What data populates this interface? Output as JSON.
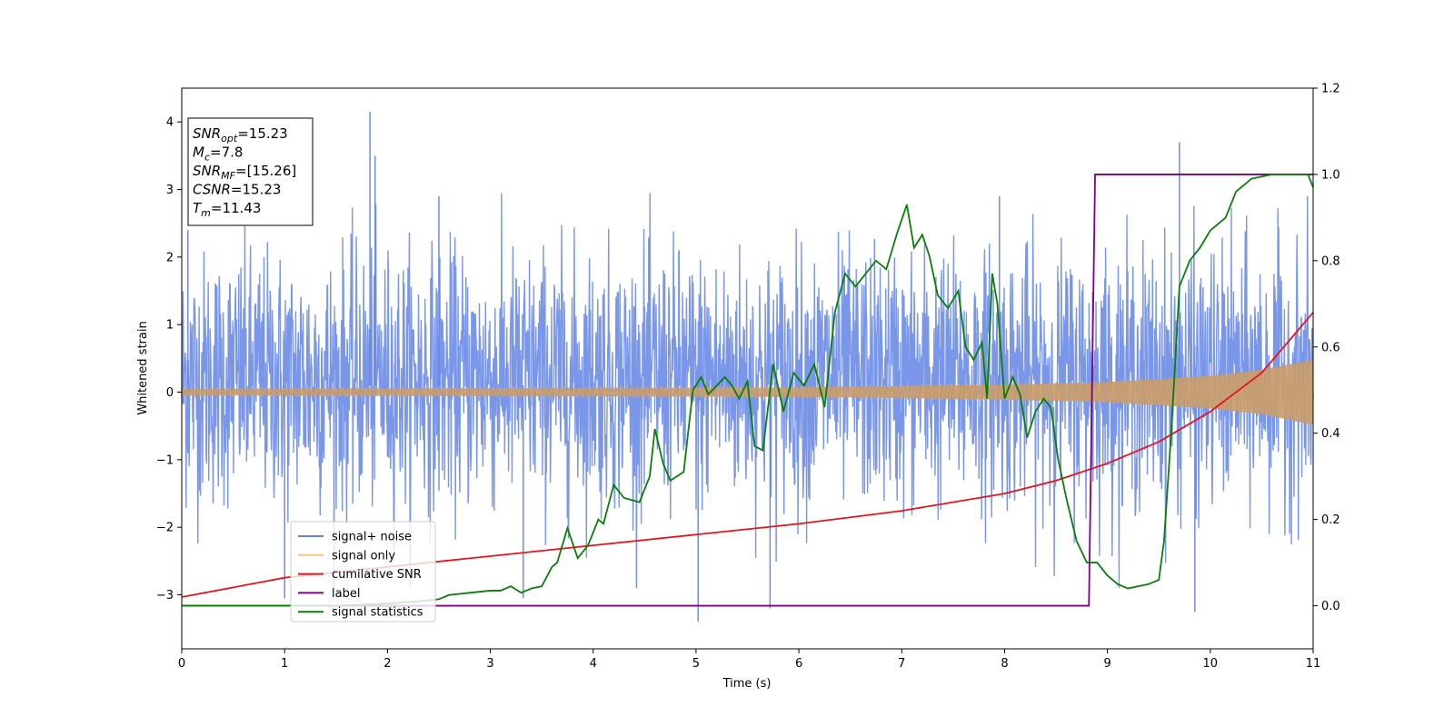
{
  "chart_data": {
    "type": "line",
    "xlabel": "Time (s)",
    "ylabel": "Whitened strain",
    "xlim": [
      0,
      11
    ],
    "ylim": [
      -3.8,
      4.5
    ],
    "y2lim": [
      -0.1,
      1.2
    ],
    "x_ticks": [
      "0",
      "1",
      "2",
      "3",
      "4",
      "5",
      "6",
      "7",
      "8",
      "9",
      "10",
      "11"
    ],
    "y_ticks": [
      "−3",
      "−2",
      "−1",
      "0",
      "1",
      "2",
      "3",
      "4"
    ],
    "y2_ticks": [
      "0.0",
      "0.2",
      "0.4",
      "0.6",
      "0.8",
      "1.0",
      "1.2"
    ],
    "grid": false,
    "legend_position": "lower-left",
    "annotation": [
      {
        "main": "SNR",
        "sub": "opt",
        "rest": "=15.23"
      },
      {
        "main": "M",
        "sub": "c",
        "rest": "=7.8"
      },
      {
        "main": "SNR",
        "sub": "MF",
        "rest": "=[15.26]"
      },
      {
        "main": "CSNR",
        "sub": "",
        "rest": "=15.23"
      },
      {
        "main": "T",
        "sub": "m",
        "rest": "=11.43"
      }
    ],
    "series": [
      {
        "name": "signal+ noise",
        "axis": "left",
        "color": "#6384e4",
        "typical_range": [
          -1.6,
          2.3
        ],
        "peaks": [
          [
            1.83,
            4.15
          ],
          [
            1.88,
            3.5
          ],
          [
            9.7,
            3.7
          ],
          [
            7.95,
            2.9
          ],
          [
            0.06,
            2.4
          ],
          [
            2.5,
            2.9
          ],
          [
            5.02,
            -3.4
          ],
          [
            5.72,
            -3.2
          ],
          [
            9.85,
            -3.25
          ],
          [
            1.0,
            -3.05
          ],
          [
            3.32,
            -3.05
          ]
        ]
      },
      {
        "name": "signal only",
        "axis": "left",
        "color": "#f5c57a",
        "envelope": {
          "t": [
            0,
            6,
            8,
            9,
            10,
            10.5,
            11
          ],
          "amplitude": [
            0.05,
            0.07,
            0.11,
            0.15,
            0.24,
            0.33,
            0.48
          ]
        }
      },
      {
        "name": "cumilative SNR",
        "axis": "right",
        "color": "#e8141b",
        "x": [
          0,
          1,
          2,
          3,
          4,
          5,
          6,
          7,
          8,
          8.5,
          9,
          9.5,
          10,
          10.5,
          11
        ],
        "y": [
          0.02,
          0.065,
          0.09,
          0.115,
          0.14,
          0.165,
          0.19,
          0.22,
          0.26,
          0.29,
          0.33,
          0.38,
          0.45,
          0.54,
          0.68
        ]
      },
      {
        "name": "label",
        "axis": "right",
        "color": "#800080",
        "x": [
          0,
          8.82,
          8.88,
          11
        ],
        "y": [
          0,
          0,
          1,
          1
        ]
      },
      {
        "name": "signal statistics",
        "axis": "right",
        "color": "#0a7d0a",
        "x": [
          0,
          0.5,
          1.0,
          1.5,
          2.0,
          2.3,
          2.5,
          2.6,
          2.8,
          3.0,
          3.1,
          3.2,
          3.3,
          3.4,
          3.5,
          3.6,
          3.65,
          3.75,
          3.85,
          3.95,
          4.05,
          4.1,
          4.2,
          4.3,
          4.45,
          4.55,
          4.6,
          4.68,
          4.75,
          4.88,
          4.97,
          5.05,
          5.12,
          5.2,
          5.28,
          5.35,
          5.42,
          5.5,
          5.57,
          5.65,
          5.75,
          5.85,
          5.95,
          6.05,
          6.15,
          6.25,
          6.35,
          6.45,
          6.55,
          6.65,
          6.75,
          6.85,
          6.95,
          7.05,
          7.12,
          7.2,
          7.27,
          7.35,
          7.45,
          7.55,
          7.62,
          7.7,
          7.78,
          7.83,
          7.88,
          7.93,
          8.0,
          8.08,
          8.15,
          8.22,
          8.3,
          8.38,
          8.45,
          8.52,
          8.6,
          8.7,
          8.8,
          8.9,
          9.0,
          9.1,
          9.2,
          9.3,
          9.4,
          9.5,
          9.55,
          9.62,
          9.7,
          9.8,
          9.9,
          10.0,
          10.05,
          10.15,
          10.25,
          10.4,
          10.6,
          10.8,
          10.95,
          11.0
        ],
        "y": [
          0.0,
          0.0,
          0.0,
          0.0,
          0.005,
          0.01,
          0.015,
          0.025,
          0.03,
          0.035,
          0.035,
          0.045,
          0.03,
          0.04,
          0.045,
          0.09,
          0.1,
          0.18,
          0.11,
          0.14,
          0.2,
          0.19,
          0.28,
          0.25,
          0.24,
          0.3,
          0.41,
          0.33,
          0.29,
          0.31,
          0.5,
          0.53,
          0.49,
          0.51,
          0.53,
          0.51,
          0.48,
          0.52,
          0.37,
          0.36,
          0.56,
          0.45,
          0.54,
          0.51,
          0.56,
          0.46,
          0.68,
          0.77,
          0.74,
          0.77,
          0.8,
          0.78,
          0.86,
          0.93,
          0.83,
          0.86,
          0.81,
          0.72,
          0.69,
          0.73,
          0.6,
          0.57,
          0.61,
          0.48,
          0.77,
          0.7,
          0.48,
          0.53,
          0.49,
          0.39,
          0.45,
          0.48,
          0.46,
          0.34,
          0.25,
          0.15,
          0.1,
          0.1,
          0.07,
          0.05,
          0.04,
          0.045,
          0.05,
          0.06,
          0.15,
          0.4,
          0.74,
          0.8,
          0.83,
          0.87,
          0.88,
          0.9,
          0.96,
          0.99,
          1.0,
          1.0,
          1.0,
          0.97
        ]
      }
    ]
  }
}
